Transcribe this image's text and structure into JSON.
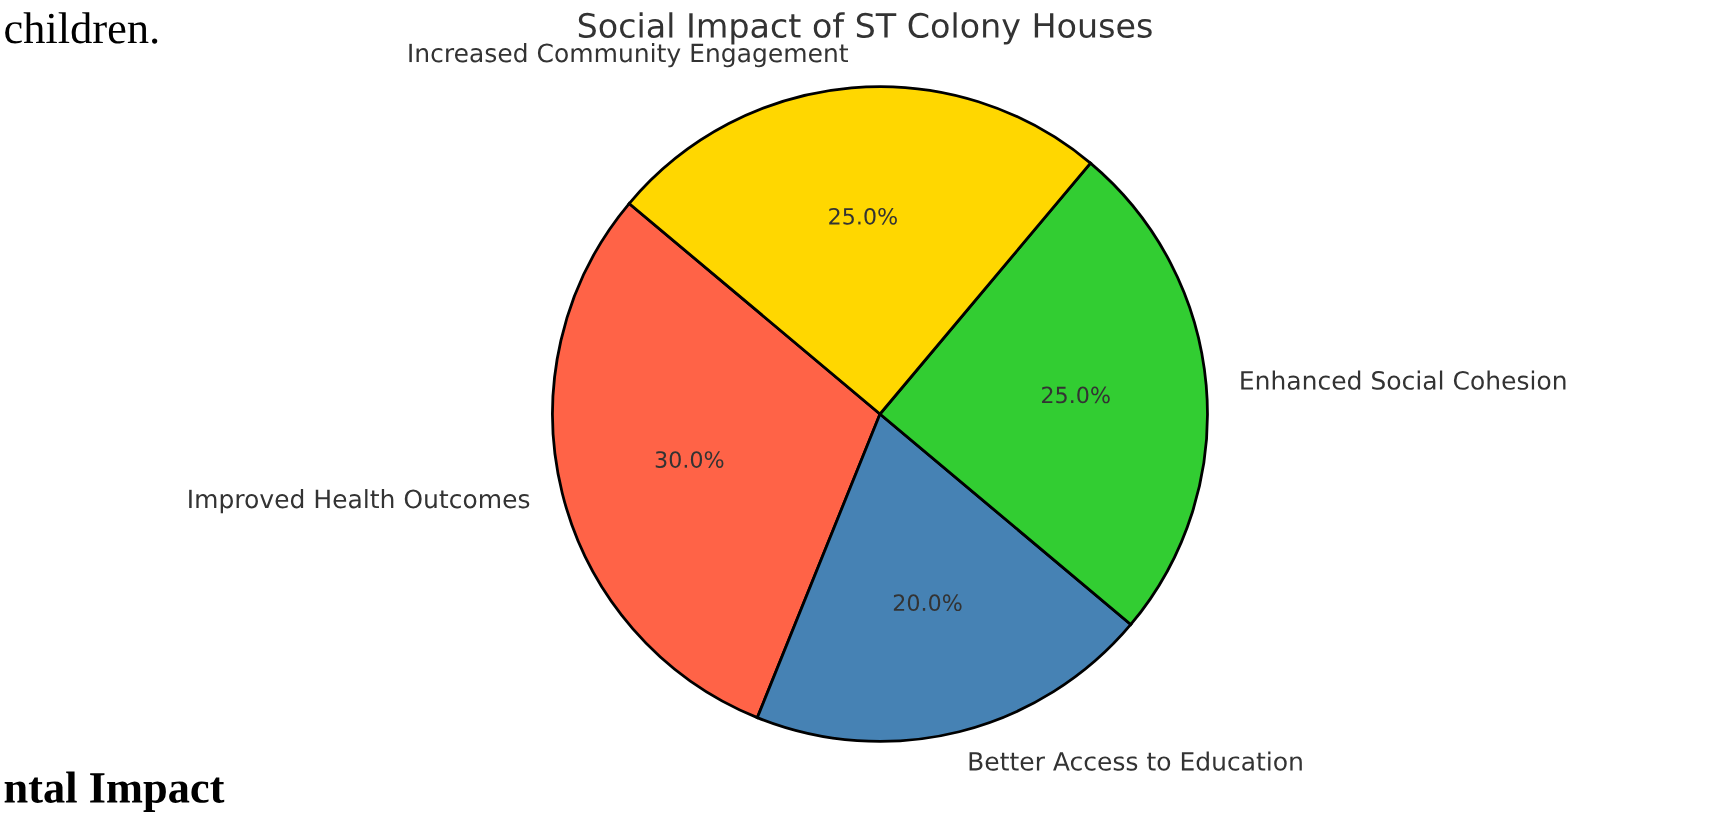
{
  "chart_data": {
    "type": "pie",
    "title": "Social Impact of ST Colony Houses",
    "categories": [
      "Improved Health Outcomes",
      "Better Access to Education",
      "Enhanced Social Cohesion",
      "Increased Community Engagement"
    ],
    "values": [
      30,
      20,
      25,
      25
    ],
    "colors": [
      "#ff6347",
      "#4682b4",
      "#32cd32",
      "#ffd700"
    ],
    "value_labels": [
      "30.0%",
      "20.0%",
      "25.0%",
      "25.0%"
    ],
    "annotations": [
      "children.",
      "ntal Impact"
    ]
  }
}
